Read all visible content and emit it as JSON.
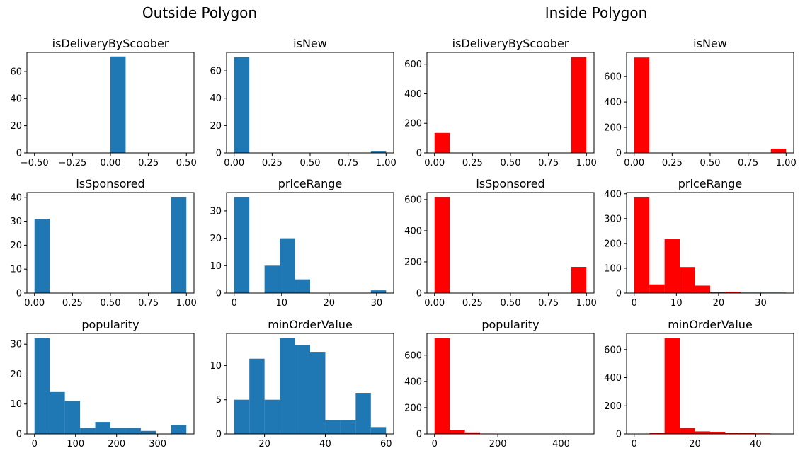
{
  "figure": {
    "left_title": "Outside Polygon",
    "right_title": "Inside Polygon"
  },
  "colors": {
    "outside": "#1f77b4",
    "inside": "#ff0000"
  },
  "chart_data": [
    {
      "type": "bar",
      "group": "outside",
      "title": "isDeliveryByScoober",
      "xlim": [
        -0.55,
        0.55
      ],
      "ylim": [
        0,
        74
      ],
      "xticks": [
        -0.5,
        -0.25,
        0.0,
        0.25,
        0.5
      ],
      "xtick_labels": [
        "−0.50",
        "−0.25",
        "0.00",
        "0.25",
        "0.50"
      ],
      "yticks": [
        0,
        20,
        40,
        60
      ],
      "ytick_labels": [
        "0",
        "20",
        "40",
        "60"
      ],
      "bins": [
        [
          0.0,
          0.1,
          71
        ]
      ]
    },
    {
      "type": "bar",
      "group": "outside",
      "title": "isNew",
      "xlim": [
        -0.05,
        1.05
      ],
      "ylim": [
        0,
        73.5
      ],
      "xticks": [
        0,
        0.25,
        0.5,
        0.75,
        1.0
      ],
      "xtick_labels": [
        "0.00",
        "0.25",
        "0.50",
        "0.75",
        "1.00"
      ],
      "yticks": [
        0,
        20,
        40,
        60
      ],
      "ytick_labels": [
        "0",
        "20",
        "40",
        "60"
      ],
      "bins": [
        [
          0.0,
          0.1,
          70
        ],
        [
          0.9,
          1.0,
          1
        ]
      ]
    },
    {
      "type": "bar",
      "group": "inside",
      "title": "isDeliveryByScoober",
      "xlim": [
        -0.05,
        1.05
      ],
      "ylim": [
        0,
        680
      ],
      "xticks": [
        0,
        0.25,
        0.5,
        0.75,
        1.0
      ],
      "xtick_labels": [
        "0.00",
        "0.25",
        "0.50",
        "0.75",
        "1.00"
      ],
      "yticks": [
        0,
        200,
        400,
        600
      ],
      "ytick_labels": [
        "0",
        "200",
        "400",
        "600"
      ],
      "bins": [
        [
          0.0,
          0.1,
          135
        ],
        [
          0.9,
          1.0,
          648
        ]
      ]
    },
    {
      "type": "bar",
      "group": "inside",
      "title": "isNew",
      "xlim": [
        -0.05,
        1.05
      ],
      "ylim": [
        0,
        790
      ],
      "xticks": [
        0,
        0.25,
        0.5,
        0.75,
        1.0
      ],
      "xtick_labels": [
        "0.00",
        "0.25",
        "0.50",
        "0.75",
        "1.00"
      ],
      "yticks": [
        0,
        200,
        400,
        600
      ],
      "ytick_labels": [
        "0",
        "200",
        "400",
        "600"
      ],
      "bins": [
        [
          0.0,
          0.1,
          750
        ],
        [
          0.9,
          1.0,
          33
        ]
      ]
    },
    {
      "type": "bar",
      "group": "outside",
      "title": "isSponsored",
      "xlim": [
        -0.05,
        1.05
      ],
      "ylim": [
        0,
        42
      ],
      "xticks": [
        0,
        0.25,
        0.5,
        0.75,
        1.0
      ],
      "xtick_labels": [
        "0.00",
        "0.25",
        "0.50",
        "0.75",
        "1.00"
      ],
      "yticks": [
        0,
        10,
        20,
        30,
        40
      ],
      "ytick_labels": [
        "0",
        "10",
        "20",
        "30",
        "40"
      ],
      "bins": [
        [
          0.0,
          0.1,
          31
        ],
        [
          0.9,
          1.0,
          40
        ]
      ]
    },
    {
      "type": "bar",
      "group": "outside",
      "title": "priceRange",
      "xlim": [
        -1.6,
        33.6
      ],
      "ylim": [
        0,
        36.7
      ],
      "xticks": [
        0,
        10,
        20,
        30
      ],
      "xtick_labels": [
        "0",
        "10",
        "20",
        "30"
      ],
      "yticks": [
        0,
        10,
        20,
        30
      ],
      "ytick_labels": [
        "0",
        "10",
        "20",
        "30"
      ],
      "bins": [
        [
          0,
          3.2,
          35
        ],
        [
          6.4,
          9.6,
          10
        ],
        [
          9.6,
          12.8,
          20
        ],
        [
          12.8,
          16.0,
          5
        ],
        [
          28.8,
          32.0,
          1
        ]
      ]
    },
    {
      "type": "bar",
      "group": "inside",
      "title": "isSponsored",
      "xlim": [
        -0.05,
        1.05
      ],
      "ylim": [
        0,
        645
      ],
      "xticks": [
        0,
        0.25,
        0.5,
        0.75,
        1.0
      ],
      "xtick_labels": [
        "0.00",
        "0.25",
        "0.50",
        "0.75",
        "1.00"
      ],
      "yticks": [
        0,
        200,
        400,
        600
      ],
      "ytick_labels": [
        "0",
        "200",
        "400",
        "600"
      ],
      "bins": [
        [
          0.0,
          0.1,
          615
        ],
        [
          0.9,
          1.0,
          168
        ]
      ]
    },
    {
      "type": "bar",
      "group": "inside",
      "title": "priceRange",
      "xlim": [
        -1.8,
        37.8
      ],
      "ylim": [
        0,
        405
      ],
      "xticks": [
        0,
        10,
        20,
        30
      ],
      "xtick_labels": [
        "0",
        "10",
        "20",
        "30"
      ],
      "yticks": [
        0,
        100,
        200,
        300,
        400
      ],
      "ytick_labels": [
        "0",
        "100",
        "200",
        "300",
        "400"
      ],
      "bins": [
        [
          0,
          3.6,
          385
        ],
        [
          3.6,
          7.2,
          35
        ],
        [
          7.2,
          10.8,
          218
        ],
        [
          10.8,
          14.4,
          105
        ],
        [
          14.4,
          18.0,
          30
        ],
        [
          18.0,
          21.6,
          3
        ],
        [
          21.6,
          25.2,
          5
        ],
        [
          25.2,
          28.8,
          2
        ],
        [
          28.8,
          32.4,
          2
        ],
        [
          32.4,
          36.0,
          2
        ]
      ]
    },
    {
      "type": "bar",
      "group": "outside",
      "title": "popularity",
      "xlim": [
        -18.5,
        388.5
      ],
      "ylim": [
        0,
        33.6
      ],
      "xticks": [
        0,
        100,
        200,
        300
      ],
      "xtick_labels": [
        "0",
        "100",
        "200",
        "300"
      ],
      "yticks": [
        0,
        10,
        20,
        30
      ],
      "ytick_labels": [
        "0",
        "10",
        "20",
        "30"
      ],
      "bins": [
        [
          0,
          37,
          32
        ],
        [
          37,
          74,
          14
        ],
        [
          74,
          111,
          11
        ],
        [
          111,
          148,
          2
        ],
        [
          148,
          185,
          4
        ],
        [
          185,
          222,
          2
        ],
        [
          222,
          259,
          2
        ],
        [
          259,
          296,
          1
        ],
        [
          333,
          370,
          3
        ]
      ]
    },
    {
      "type": "bar",
      "group": "outside",
      "title": "minOrderValue",
      "xlim": [
        7.5,
        62.5
      ],
      "ylim": [
        0,
        14.7
      ],
      "xticks": [
        20,
        40,
        60
      ],
      "xtick_labels": [
        "20",
        "40",
        "60"
      ],
      "yticks": [
        0,
        5,
        10
      ],
      "ytick_labels": [
        "0",
        "5",
        "10"
      ],
      "bins": [
        [
          10,
          15,
          5
        ],
        [
          15,
          20,
          11
        ],
        [
          20,
          25,
          5
        ],
        [
          25,
          30,
          14
        ],
        [
          30,
          35,
          13
        ],
        [
          35,
          40,
          12
        ],
        [
          40,
          45,
          2
        ],
        [
          45,
          50,
          2
        ],
        [
          50,
          55,
          6
        ],
        [
          55,
          60,
          1
        ]
      ]
    },
    {
      "type": "bar",
      "group": "inside",
      "title": "popularity",
      "xlim": [
        -24,
        504
      ],
      "ylim": [
        0,
        766
      ],
      "xticks": [
        0,
        200,
        400
      ],
      "xtick_labels": [
        "0",
        "200",
        "400"
      ],
      "yticks": [
        0,
        200,
        400,
        600
      ],
      "ytick_labels": [
        "0",
        "200",
        "400",
        "600"
      ],
      "bins": [
        [
          0,
          48,
          730
        ],
        [
          48,
          96,
          32
        ],
        [
          96,
          144,
          12
        ],
        [
          144,
          192,
          3
        ],
        [
          192,
          240,
          2
        ],
        [
          240,
          288,
          1
        ],
        [
          288,
          336,
          1
        ],
        [
          336,
          384,
          1
        ],
        [
          384,
          432,
          1
        ],
        [
          432,
          480,
          1
        ]
      ]
    },
    {
      "type": "bar",
      "group": "inside",
      "title": "minOrderValue",
      "xlim": [
        -2.5,
        52.5
      ],
      "ylim": [
        0,
        715
      ],
      "xticks": [
        0,
        20,
        40
      ],
      "xtick_labels": [
        "0",
        "20",
        "40"
      ],
      "yticks": [
        0,
        200,
        400,
        600
      ],
      "ytick_labels": [
        "0",
        "200",
        "400",
        "600"
      ],
      "bins": [
        [
          0,
          5,
          1
        ],
        [
          5,
          10,
          5
        ],
        [
          10,
          15,
          680
        ],
        [
          15,
          20,
          42
        ],
        [
          20,
          25,
          18
        ],
        [
          25,
          30,
          15
        ],
        [
          30,
          35,
          8
        ],
        [
          35,
          40,
          6
        ],
        [
          40,
          45,
          4
        ],
        [
          45,
          50,
          2
        ]
      ]
    }
  ]
}
